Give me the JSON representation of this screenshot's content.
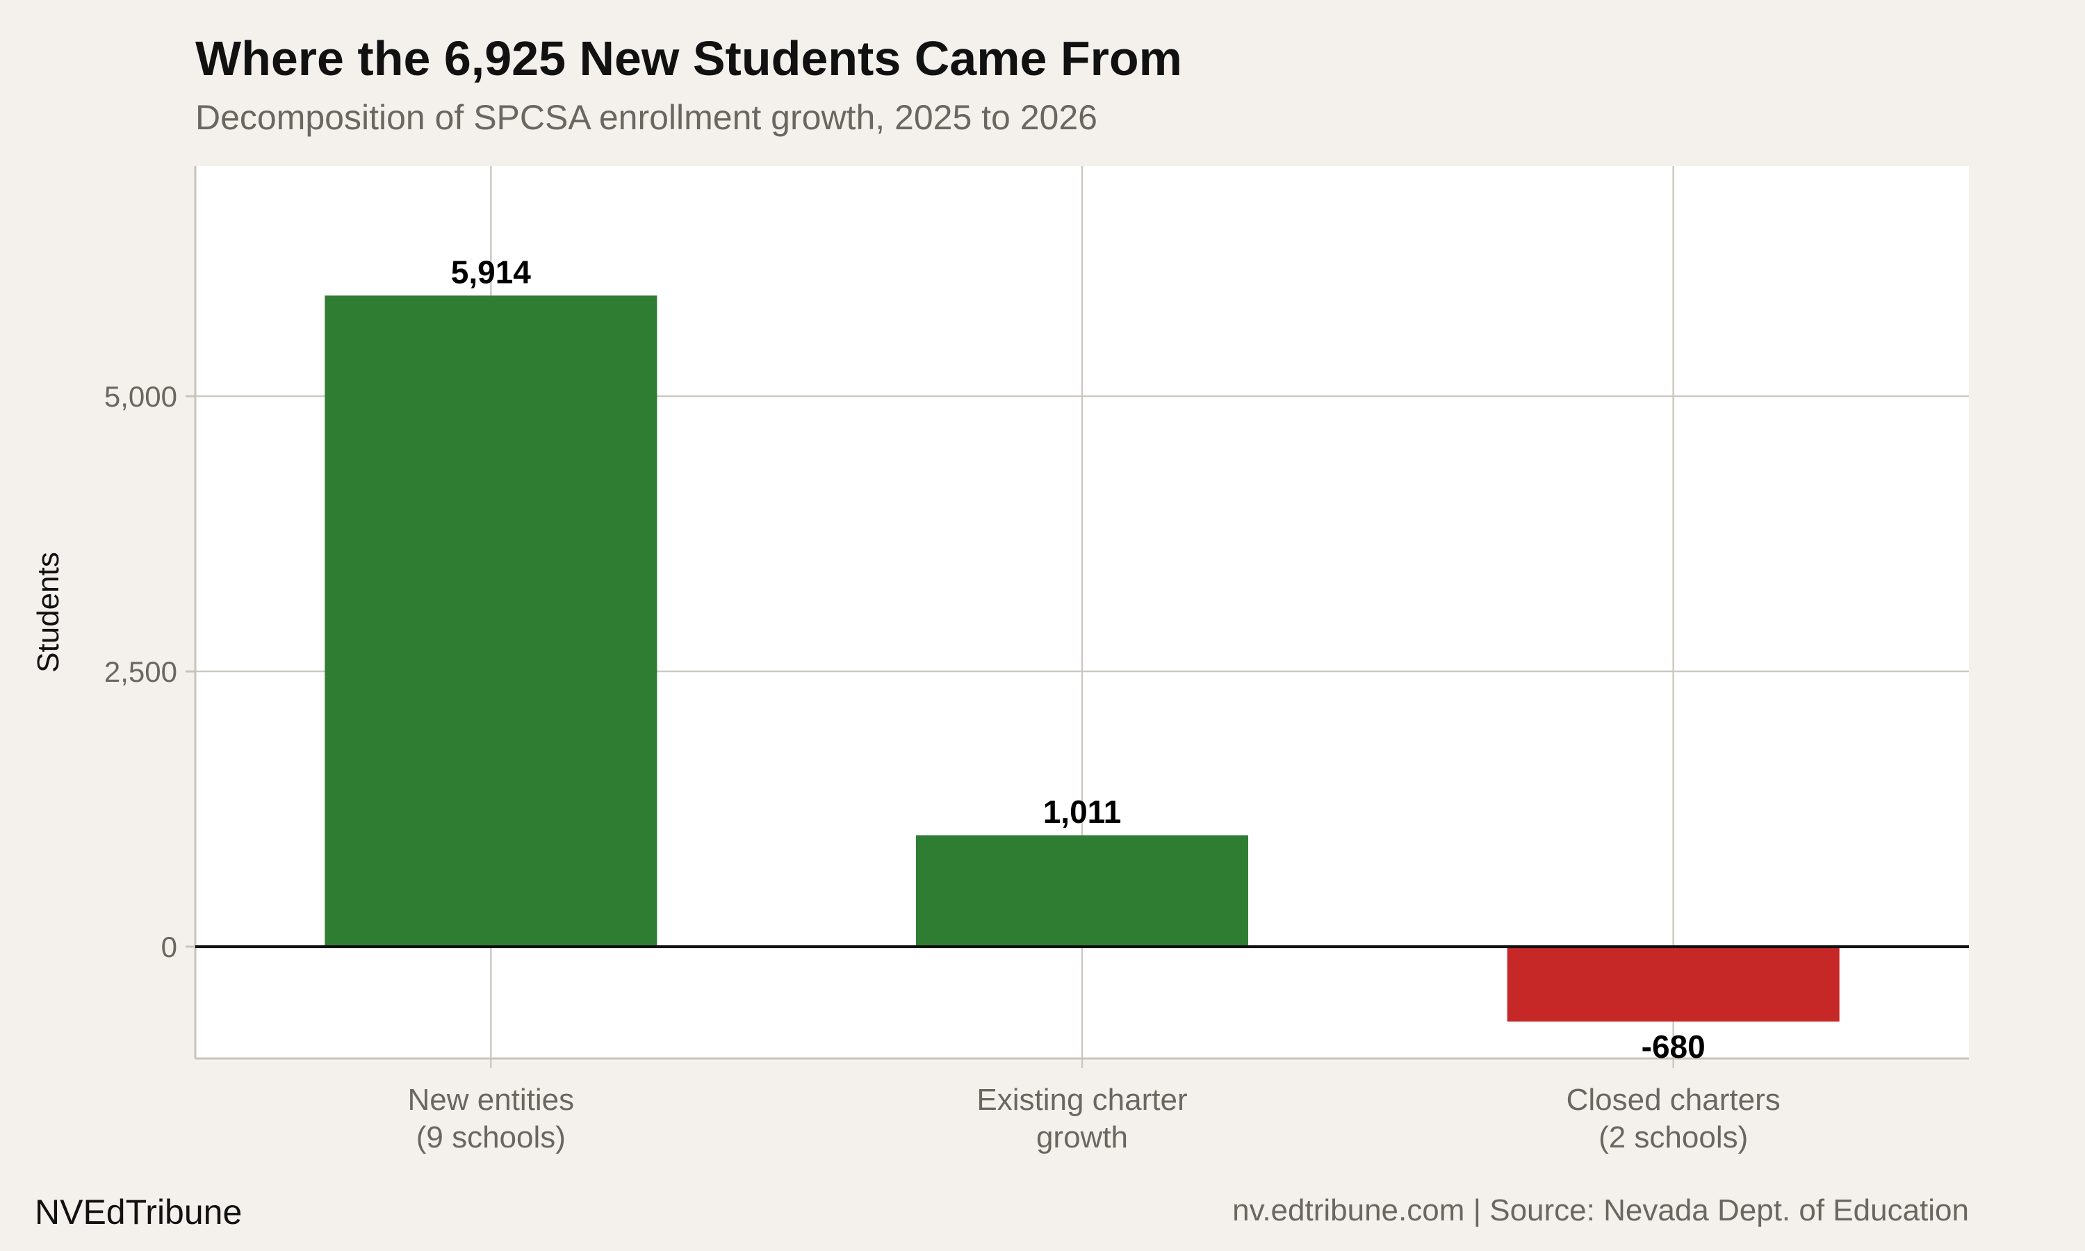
{
  "title": "Where the 6,925 New Students Came From",
  "subtitle": "Decomposition of SPCSA enrollment growth, 2025 to 2026",
  "footer": {
    "brand": "NVEdTribune",
    "source": "nv.edtribune.com | Source: Nevada Dept. of Education"
  },
  "chart_data": {
    "type": "bar",
    "categories": [
      [
        "New entities",
        "(9 schools)"
      ],
      [
        "Existing charter",
        "growth"
      ],
      [
        "Closed charters",
        "(2 schools)"
      ]
    ],
    "values": [
      5914,
      1011,
      -680
    ],
    "data_labels": [
      "5,914",
      "1,011",
      "-680"
    ],
    "colors": [
      "#2e7d32",
      "#2e7d32",
      "#c62828"
    ],
    "xlabel": "",
    "ylabel": "Students",
    "ylim": [
      -1016,
      7090
    ],
    "yticks": [
      0,
      2500,
      5000
    ],
    "ytick_labels": [
      "0",
      "2,500",
      "5,000"
    ],
    "grid": true,
    "zero_line": true,
    "background": "#f4f1ec",
    "panel": "#ffffff"
  }
}
